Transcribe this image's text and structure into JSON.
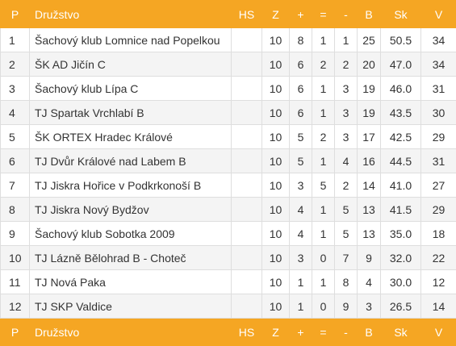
{
  "headers": {
    "p": "P",
    "team": "Družstvo",
    "hs": "HS",
    "z": "Z",
    "plus": "+",
    "eq": "=",
    "minus": "-",
    "b": "B",
    "sk": "Sk",
    "v": "V"
  },
  "rows": [
    {
      "p": "1",
      "team": "Šachový klub Lomnice nad Popelkou",
      "hs": "",
      "z": "10",
      "plus": "8",
      "eq": "1",
      "minus": "1",
      "b": "25",
      "sk": "50.5",
      "v": "34"
    },
    {
      "p": "2",
      "team": "ŠK AD Jičín C",
      "hs": "",
      "z": "10",
      "plus": "6",
      "eq": "2",
      "minus": "2",
      "b": "20",
      "sk": "47.0",
      "v": "34"
    },
    {
      "p": "3",
      "team": "Šachový klub Lípa C",
      "hs": "",
      "z": "10",
      "plus": "6",
      "eq": "1",
      "minus": "3",
      "b": "19",
      "sk": "46.0",
      "v": "31"
    },
    {
      "p": "4",
      "team": "TJ Spartak Vrchlabí B",
      "hs": "",
      "z": "10",
      "plus": "6",
      "eq": "1",
      "minus": "3",
      "b": "19",
      "sk": "43.5",
      "v": "30"
    },
    {
      "p": "5",
      "team": "ŠK ORTEX Hradec Králové",
      "hs": "",
      "z": "10",
      "plus": "5",
      "eq": "2",
      "minus": "3",
      "b": "17",
      "sk": "42.5",
      "v": "29"
    },
    {
      "p": "6",
      "team": "TJ Dvůr Králové nad Labem B",
      "hs": "",
      "z": "10",
      "plus": "5",
      "eq": "1",
      "minus": "4",
      "b": "16",
      "sk": "44.5",
      "v": "31"
    },
    {
      "p": "7",
      "team": "TJ Jiskra Hořice v Podkrkonoší B",
      "hs": "",
      "z": "10",
      "plus": "3",
      "eq": "5",
      "minus": "2",
      "b": "14",
      "sk": "41.0",
      "v": "27"
    },
    {
      "p": "8",
      "team": "TJ Jiskra Nový Bydžov",
      "hs": "",
      "z": "10",
      "plus": "4",
      "eq": "1",
      "minus": "5",
      "b": "13",
      "sk": "41.5",
      "v": "29"
    },
    {
      "p": "9",
      "team": "Šachový klub Sobotka 2009",
      "hs": "",
      "z": "10",
      "plus": "4",
      "eq": "1",
      "minus": "5",
      "b": "13",
      "sk": "35.0",
      "v": "18"
    },
    {
      "p": "10",
      "team": "TJ Lázně Bělohrad B - Choteč",
      "hs": "",
      "z": "10",
      "plus": "3",
      "eq": "0",
      "minus": "7",
      "b": "9",
      "sk": "32.0",
      "v": "22"
    },
    {
      "p": "11",
      "team": "TJ Nová Paka",
      "hs": "",
      "z": "10",
      "plus": "1",
      "eq": "1",
      "minus": "8",
      "b": "4",
      "sk": "30.0",
      "v": "12"
    },
    {
      "p": "12",
      "team": "TJ SKP Valdice",
      "hs": "",
      "z": "10",
      "plus": "1",
      "eq": "0",
      "minus": "9",
      "b": "3",
      "sk": "26.5",
      "v": "14"
    }
  ],
  "colors": {
    "header_bg": "#f5a623",
    "row_alt_bg": "#f4f4f4"
  }
}
